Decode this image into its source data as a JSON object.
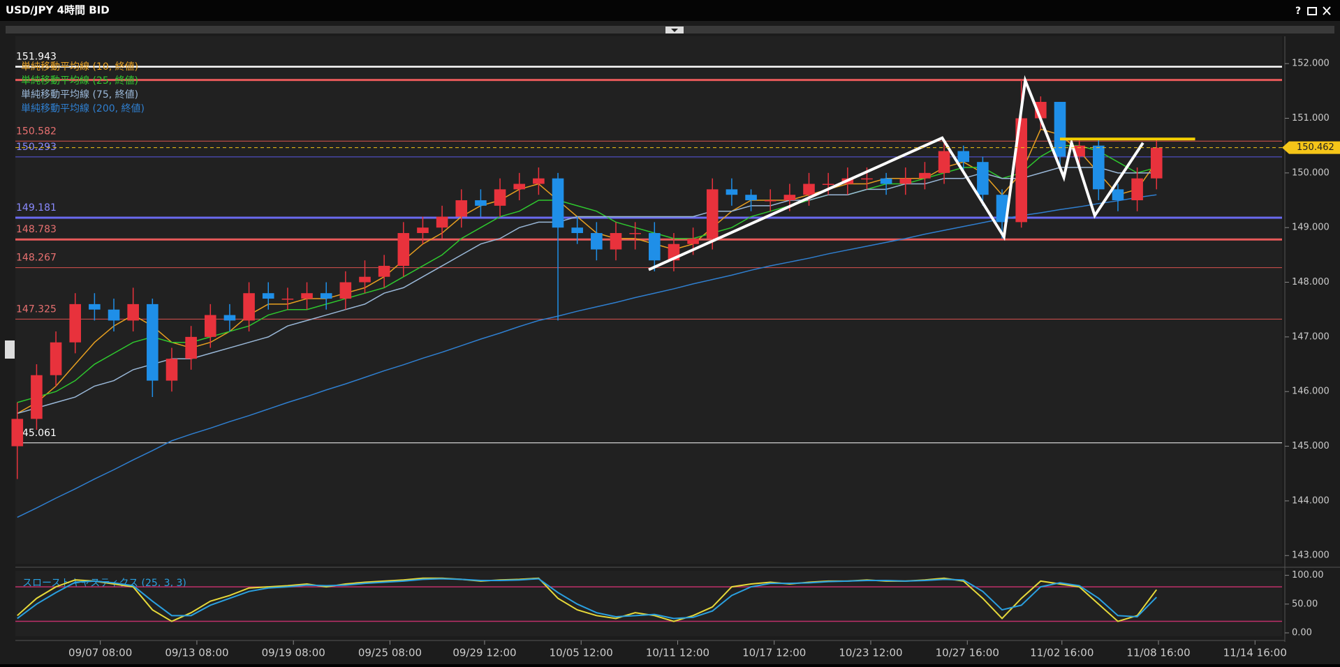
{
  "window": {
    "help": "?"
  },
  "chart_data": [
    {
      "type": "candlestick",
      "title": "USD/JPY 4時間 BID",
      "up_color": "#e8323c",
      "down_color": "#1f8fe8",
      "xlim": [
        -0.1,
        65.5
      ],
      "xticks": [
        {
          "value": 4.3,
          "label": "09/07 08:00"
        },
        {
          "value": 9.3,
          "label": "09/13 08:00"
        },
        {
          "value": 14.3,
          "label": "09/19 08:00"
        },
        {
          "value": 19.3,
          "label": "09/25 08:00"
        },
        {
          "value": 24.2,
          "label": "09/29 12:00"
        },
        {
          "value": 29.2,
          "label": "10/05 12:00"
        },
        {
          "value": 34.2,
          "label": "10/11 12:00"
        },
        {
          "value": 39.2,
          "label": "10/17 12:00"
        },
        {
          "value": 44.2,
          "label": "10/23 12:00"
        },
        {
          "value": 49.2,
          "label": "10/27 16:00"
        },
        {
          "value": 54.1,
          "label": "11/02 16:00"
        },
        {
          "value": 59.1,
          "label": "11/08 16:00"
        },
        {
          "value": 64.1,
          "label": "11/14 16:00"
        }
      ],
      "ylim": [
        142.85,
        152.5
      ],
      "yticks": [
        {
          "value": 152,
          "label": "152.000"
        },
        {
          "value": 151,
          "label": "151.000"
        },
        {
          "value": 150,
          "label": "150.000"
        },
        {
          "value": 149,
          "label": "149.000"
        },
        {
          "value": 148,
          "label": "148.000"
        },
        {
          "value": 147,
          "label": "147.000"
        },
        {
          "value": 146,
          "label": "146.000"
        },
        {
          "value": 145,
          "label": "145.000"
        },
        {
          "value": 144,
          "label": "144.000"
        },
        {
          "value": 143,
          "label": "143.000"
        }
      ],
      "ohlc": {
        "open": [
          145.0,
          145.5,
          146.3,
          146.9,
          147.6,
          147.5,
          147.3,
          147.6,
          146.2,
          146.6,
          147.0,
          147.4,
          147.3,
          147.8,
          147.7,
          147.7,
          147.8,
          147.7,
          148.0,
          148.1,
          148.3,
          148.9,
          149.0,
          149.2,
          149.5,
          149.4,
          149.7,
          149.8,
          149.9,
          149.0,
          148.9,
          148.6,
          148.9,
          148.9,
          148.4,
          148.7,
          148.8,
          149.7,
          149.6,
          149.5,
          149.5,
          149.6,
          149.8,
          149.8,
          149.9,
          149.9,
          149.8,
          149.9,
          150.0,
          150.4,
          150.2,
          149.6,
          149.1,
          151.0,
          151.3,
          150.3,
          150.5,
          149.7,
          149.5,
          149.9
        ],
        "high": [
          145.8,
          146.5,
          147.1,
          147.8,
          147.8,
          147.7,
          147.9,
          147.7,
          146.8,
          147.2,
          147.6,
          147.6,
          148.0,
          148.0,
          147.9,
          148.0,
          148.0,
          148.2,
          148.4,
          148.5,
          149.1,
          149.2,
          149.4,
          149.7,
          149.7,
          149.9,
          150.0,
          150.1,
          150.0,
          149.2,
          149.1,
          149.1,
          149.1,
          149.1,
          148.9,
          149.0,
          149.9,
          149.9,
          149.7,
          149.7,
          149.8,
          150.0,
          150.0,
          150.1,
          150.1,
          150.0,
          150.1,
          150.2,
          150.6,
          150.5,
          150.3,
          149.7,
          151.7,
          151.4,
          151.3,
          150.6,
          150.6,
          149.8,
          150.1,
          150.6
        ],
        "low": [
          144.4,
          145.3,
          146.1,
          146.7,
          147.3,
          147.1,
          147.1,
          145.9,
          146.0,
          146.4,
          146.8,
          147.1,
          147.1,
          147.5,
          147.5,
          147.5,
          147.5,
          147.5,
          147.8,
          147.9,
          148.1,
          148.7,
          148.8,
          149.0,
          149.2,
          149.2,
          149.5,
          149.6,
          147.3,
          148.7,
          148.4,
          148.4,
          148.6,
          148.2,
          148.2,
          148.5,
          148.6,
          149.4,
          149.3,
          149.3,
          149.3,
          149.4,
          149.6,
          149.6,
          149.7,
          149.6,
          149.6,
          149.7,
          149.8,
          150.0,
          149.4,
          148.8,
          149.0,
          150.8,
          150.1,
          150.1,
          149.5,
          149.3,
          149.3,
          149.7
        ],
        "close": [
          145.5,
          146.3,
          146.9,
          147.6,
          147.5,
          147.3,
          147.6,
          146.2,
          146.6,
          147.0,
          147.4,
          147.3,
          147.8,
          147.7,
          147.7,
          147.8,
          147.7,
          148.0,
          148.1,
          148.3,
          148.9,
          149.0,
          149.2,
          149.5,
          149.4,
          149.7,
          149.8,
          149.9,
          149.0,
          148.9,
          148.6,
          148.9,
          148.9,
          148.4,
          148.7,
          148.8,
          149.7,
          149.6,
          149.5,
          149.5,
          149.6,
          149.8,
          149.8,
          149.9,
          149.9,
          149.8,
          149.9,
          150.0,
          150.4,
          150.2,
          149.6,
          149.1,
          151.0,
          151.3,
          150.3,
          150.5,
          149.7,
          149.5,
          149.9,
          150.462
        ]
      },
      "series": [
        {
          "name": "単純移動平均線 (10, 終値)",
          "color": "#e8a020",
          "values": [
            145.6,
            145.8,
            146.1,
            146.5,
            146.9,
            147.2,
            147.4,
            147.2,
            146.9,
            146.8,
            146.9,
            147.1,
            147.4,
            147.6,
            147.6,
            147.7,
            147.7,
            147.8,
            147.9,
            148.1,
            148.4,
            148.7,
            148.9,
            149.2,
            149.4,
            149.5,
            149.7,
            149.8,
            149.5,
            149.2,
            148.9,
            148.8,
            148.8,
            148.7,
            148.6,
            148.7,
            149.0,
            149.3,
            149.5,
            149.5,
            149.5,
            149.6,
            149.7,
            149.8,
            149.8,
            149.9,
            149.9,
            149.9,
            150.1,
            150.2,
            150.0,
            149.6,
            150.0,
            150.8,
            150.7,
            150.4,
            150.0,
            149.6,
            149.7,
            150.2
          ]
        },
        {
          "name": "単純移動平均線 (25, 終値)",
          "color": "#2ec82e",
          "values": [
            145.8,
            145.9,
            146.0,
            146.2,
            146.5,
            146.7,
            146.9,
            147.0,
            146.9,
            146.9,
            147.0,
            147.1,
            147.2,
            147.4,
            147.5,
            147.5,
            147.6,
            147.7,
            147.8,
            147.9,
            148.1,
            148.3,
            148.5,
            148.8,
            149.0,
            149.2,
            149.3,
            149.5,
            149.5,
            149.4,
            149.3,
            149.1,
            149.0,
            148.9,
            148.8,
            148.8,
            148.9,
            149.0,
            149.2,
            149.3,
            149.4,
            149.5,
            149.6,
            149.6,
            149.7,
            149.8,
            149.8,
            149.9,
            150.0,
            150.1,
            150.1,
            149.9,
            150.0,
            150.3,
            150.5,
            150.5,
            150.4,
            150.2,
            150.0,
            150.1
          ]
        },
        {
          "name": "単純移動平均線 (75, 終値)",
          "color": "#9ab8d8",
          "values": [
            145.6,
            145.7,
            145.8,
            145.9,
            146.1,
            146.2,
            146.4,
            146.5,
            146.6,
            146.6,
            146.7,
            146.8,
            146.9,
            147.0,
            147.2,
            147.3,
            147.4,
            147.5,
            147.6,
            147.8,
            147.9,
            148.1,
            148.3,
            148.5,
            148.7,
            148.8,
            149.0,
            149.1,
            149.1,
            149.2,
            149.2,
            149.2,
            149.2,
            149.2,
            149.2,
            149.2,
            149.3,
            149.3,
            149.4,
            149.4,
            149.5,
            149.5,
            149.6,
            149.6,
            149.7,
            149.7,
            149.8,
            149.8,
            149.9,
            149.9,
            150.0,
            149.9,
            149.9,
            150.0,
            150.1,
            150.1,
            150.1,
            150.0,
            150.0,
            150.0
          ]
        },
        {
          "name": "単純移動平均線 (200, 終値)",
          "color": "#2f7fd0",
          "values": [
            143.7,
            143.87,
            144.05,
            144.22,
            144.4,
            144.57,
            144.75,
            144.92,
            145.1,
            145.22,
            145.33,
            145.45,
            145.56,
            145.68,
            145.8,
            145.91,
            146.03,
            146.14,
            146.26,
            146.38,
            146.49,
            146.61,
            146.72,
            146.84,
            146.96,
            147.07,
            147.19,
            147.3,
            147.38,
            147.47,
            147.55,
            147.63,
            147.72,
            147.8,
            147.88,
            147.97,
            148.05,
            148.13,
            148.22,
            148.3,
            148.37,
            148.44,
            148.52,
            148.59,
            148.66,
            148.73,
            148.8,
            148.88,
            148.95,
            149.02,
            149.09,
            149.16,
            149.22,
            149.27,
            149.33,
            149.38,
            149.44,
            149.49,
            149.55,
            149.6
          ]
        }
      ],
      "levels": [
        {
          "value": 151.943,
          "color": "#ffffff",
          "label_color": "#ffffff",
          "width": 2.5
        },
        {
          "value": 151.7,
          "color": "#e85a5a",
          "width": 3,
          "labeled": false
        },
        {
          "value": 150.582,
          "color": "#d9534f",
          "label_color": "#e87070",
          "width": 1
        },
        {
          "value": 150.293,
          "color": "#5a5ae6",
          "label_color": "#8a8aff",
          "width": 1
        },
        {
          "value": 149.181,
          "color": "#6a6af0",
          "label_color": "#8a8aff",
          "width": 3
        },
        {
          "value": 148.783,
          "color": "#e85a5a",
          "label_color": "#e87070",
          "width": 3
        },
        {
          "value": 148.267,
          "color": "#d9534f",
          "label_color": "#e87070",
          "width": 1
        },
        {
          "value": 147.325,
          "color": "#d9534f",
          "label_color": "#e87070",
          "width": 1
        },
        {
          "value": 145.061,
          "color": "#ffffff",
          "label_color": "#ffffff",
          "width": 1
        }
      ],
      "current_price": {
        "value": 150.462,
        "color": "#f5c518"
      },
      "trendlines": [
        {
          "color": "#ffffff",
          "points": [
            [
              32.7,
              148.23
            ],
            [
              47.9,
              150.64
            ],
            [
              51.1,
              148.83
            ],
            [
              52.2,
              151.69
            ],
            [
              54.2,
              149.92
            ],
            [
              54.6,
              150.55
            ],
            [
              55.8,
              149.22
            ],
            [
              58.3,
              150.55
            ]
          ]
        },
        {
          "color": "#f5d000",
          "points": [
            [
              54.0,
              150.62
            ],
            [
              61.0,
              150.62
            ]
          ]
        }
      ]
    },
    {
      "type": "line",
      "title": "スローストキャスティクス (25, 3, 3)",
      "ylim": [
        -6,
        108
      ],
      "yticks": [
        {
          "value": 100,
          "label": "100.00"
        },
        {
          "value": 50,
          "label": "50.00"
        },
        {
          "value": 0,
          "label": "0.00"
        }
      ],
      "levels": [
        80,
        20
      ],
      "level_color": "#c0306a",
      "series": [
        {
          "color": "#e6d93a",
          "values": [
            30,
            60,
            80,
            92,
            90,
            85,
            80,
            40,
            20,
            35,
            55,
            65,
            78,
            80,
            82,
            85,
            80,
            85,
            88,
            90,
            92,
            95,
            95,
            93,
            90,
            92,
            93,
            95,
            60,
            40,
            30,
            25,
            35,
            30,
            20,
            30,
            45,
            80,
            85,
            88,
            85,
            88,
            90,
            90,
            92,
            90,
            90,
            92,
            95,
            90,
            60,
            25,
            60,
            90,
            85,
            80,
            50,
            20,
            30,
            75
          ]
        },
        {
          "color": "#2aa0e0",
          "values": [
            25,
            50,
            70,
            88,
            90,
            87,
            82,
            55,
            30,
            30,
            48,
            60,
            72,
            78,
            80,
            83,
            82,
            83,
            86,
            88,
            90,
            93,
            94,
            93,
            91,
            91,
            92,
            94,
            70,
            50,
            35,
            28,
            30,
            32,
            25,
            27,
            38,
            65,
            80,
            86,
            86,
            87,
            89,
            90,
            91,
            91,
            90,
            91,
            93,
            92,
            72,
            40,
            48,
            80,
            87,
            82,
            60,
            30,
            28,
            62
          ]
        }
      ]
    }
  ]
}
